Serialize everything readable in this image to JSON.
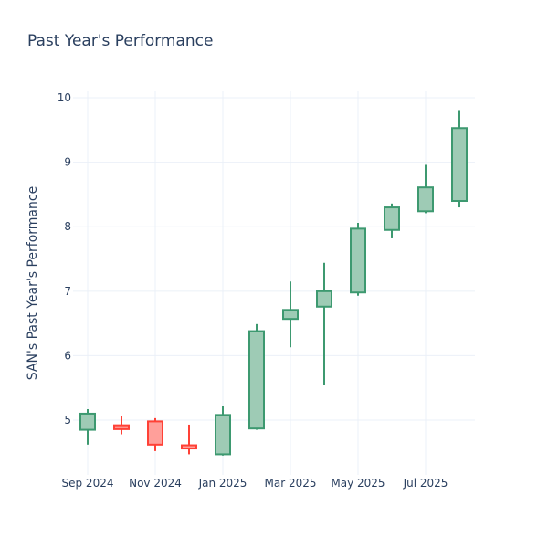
{
  "chart_data": {
    "type": "candlestick",
    "title": "Past Year's Performance",
    "xlabel": "",
    "ylabel": "SAN's Past Year's Performance",
    "ylim": [
      4.15,
      10.1
    ],
    "y_ticks": [
      5,
      6,
      7,
      8,
      9,
      10
    ],
    "x_tick_labels": [
      "Sep 2024",
      "Nov 2024",
      "Jan 2025",
      "Mar 2025",
      "May 2025",
      "Jul 2025"
    ],
    "grid": true,
    "legend": "none",
    "colors": {
      "up": "#3d9970",
      "up_fill": "#9ecbb5",
      "down": "#ff4136",
      "down_fill": "#ff9f9a"
    },
    "candles": [
      {
        "date": "2024-09",
        "open": 4.85,
        "high": 5.17,
        "low": 4.62,
        "close": 5.1
      },
      {
        "date": "2024-10",
        "open": 4.92,
        "high": 5.07,
        "low": 4.78,
        "close": 4.86
      },
      {
        "date": "2024-11",
        "open": 4.98,
        "high": 5.03,
        "low": 4.52,
        "close": 4.62
      },
      {
        "date": "2024-12",
        "open": 4.61,
        "high": 4.93,
        "low": 4.47,
        "close": 4.56
      },
      {
        "date": "2025-01",
        "open": 4.47,
        "high": 5.22,
        "low": 4.45,
        "close": 5.08
      },
      {
        "date": "2025-02",
        "open": 4.87,
        "high": 6.49,
        "low": 4.85,
        "close": 6.38
      },
      {
        "date": "2025-03",
        "open": 6.57,
        "high": 7.15,
        "low": 6.13,
        "close": 6.71
      },
      {
        "date": "2025-04",
        "open": 6.76,
        "high": 7.44,
        "low": 5.55,
        "close": 7.0
      },
      {
        "date": "2025-05",
        "open": 6.98,
        "high": 8.06,
        "low": 6.93,
        "close": 7.97
      },
      {
        "date": "2025-06",
        "open": 7.95,
        "high": 8.36,
        "low": 7.82,
        "close": 8.3
      },
      {
        "date": "2025-07",
        "open": 8.24,
        "high": 8.96,
        "low": 8.21,
        "close": 8.61
      },
      {
        "date": "2025-08",
        "open": 8.4,
        "high": 9.81,
        "low": 8.3,
        "close": 9.53
      }
    ]
  }
}
